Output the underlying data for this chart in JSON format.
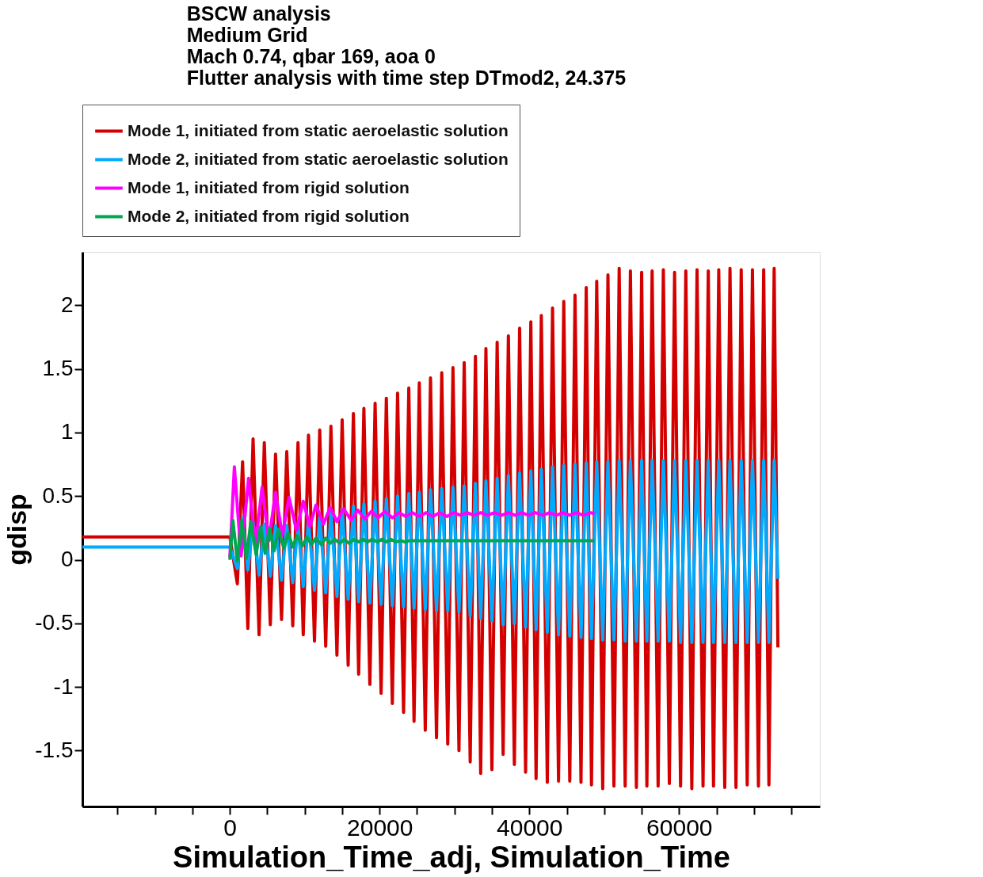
{
  "chart_data": {
    "type": "line",
    "title": [
      "BSCW analysis",
      "Medium Grid",
      "Mach 0.74, qbar 169, aoa 0",
      "Flutter analysis with time step DTmod2, 24.375"
    ],
    "xlabel": "Simulation_Time_adj, Simulation_Time",
    "ylabel": "gdisp",
    "xlim": [
      -19700,
      78800
    ],
    "ylim": [
      -1.94,
      2.42
    ],
    "xticks": [
      {
        "value": -15000,
        "label": null
      },
      {
        "value": -10000,
        "label": null
      },
      {
        "value": -5000,
        "label": null
      },
      0,
      {
        "value": 5000,
        "label": null
      },
      {
        "value": 10000,
        "label": null
      },
      {
        "value": 15000,
        "label": null
      },
      20000,
      {
        "value": 25000,
        "label": null
      },
      {
        "value": 30000,
        "label": null
      },
      {
        "value": 35000,
        "label": null
      },
      40000,
      {
        "value": 45000,
        "label": null
      },
      {
        "value": 50000,
        "label": null
      },
      {
        "value": 55000,
        "label": null
      },
      60000,
      {
        "value": 65000,
        "label": null
      },
      {
        "value": 70000,
        "label": null
      },
      {
        "value": 75000,
        "label": null
      }
    ],
    "yticks": [
      -1.5,
      -1,
      -0.5,
      0,
      0.5,
      1,
      1.5,
      2
    ],
    "legend": "top",
    "grid": false,
    "marker": "none",
    "line_style": "solid",
    "series": [
      {
        "name": "Mode 1, initiated from static aeroelastic solution",
        "color": "#d40000",
        "x": [
          -19700,
          0,
          1000,
          1700,
          2400,
          3100,
          3900,
          4600,
          5400,
          6100,
          6900,
          7600,
          8400,
          9100,
          9800,
          10500,
          11300,
          12000,
          12800,
          13500,
          14300,
          15000,
          15800,
          16500,
          17200,
          17900,
          18700,
          19400,
          20200,
          20900,
          21700,
          22400,
          23200,
          23900,
          24600,
          25300,
          26100,
          26800,
          27600,
          28300,
          29100,
          29800,
          30600,
          31300,
          32100,
          32800,
          33500,
          34200,
          35000,
          35700,
          36500,
          37200,
          38000,
          38700,
          39500,
          40200,
          40900,
          41600,
          42400,
          43100,
          43900,
          44600,
          45400,
          46100,
          46900,
          47600,
          48300,
          49000,
          49800,
          50500,
          51300,
          52000,
          52800,
          53500,
          54300,
          55000,
          55700,
          56400,
          57200,
          57900,
          58700,
          59400,
          60200,
          60900,
          61700,
          62400,
          63200,
          63900,
          64600,
          65300,
          66100,
          66800,
          67600,
          68300,
          69100,
          69800,
          70600,
          71300,
          72000,
          72700,
          73200
        ],
        "values": [
          0.18,
          0.18,
          -0.19,
          0.77,
          -0.54,
          0.95,
          -0.59,
          0.92,
          -0.51,
          0.83,
          -0.47,
          0.85,
          -0.52,
          0.92,
          -0.59,
          0.98,
          -0.64,
          1.02,
          -0.68,
          1.05,
          -0.75,
          1.1,
          -0.83,
          1.15,
          -0.9,
          1.19,
          -0.98,
          1.23,
          -1.05,
          1.27,
          -1.13,
          1.31,
          -1.2,
          1.35,
          -1.27,
          1.39,
          -1.34,
          1.43,
          -1.4,
          1.47,
          -1.45,
          1.51,
          -1.5,
          1.55,
          -1.59,
          1.6,
          -1.68,
          1.66,
          -1.65,
          1.71,
          -1.53,
          1.76,
          -1.61,
          1.82,
          -1.67,
          1.87,
          -1.72,
          1.92,
          -1.75,
          1.98,
          -1.74,
          2.03,
          -1.74,
          2.08,
          -1.75,
          2.14,
          -1.77,
          2.19,
          -1.8,
          2.24,
          -1.78,
          2.29,
          -1.78,
          2.27,
          -1.79,
          2.26,
          -1.78,
          2.27,
          -1.78,
          2.28,
          -1.76,
          2.26,
          -1.78,
          2.27,
          -1.8,
          2.28,
          -1.78,
          2.27,
          -1.78,
          2.28,
          -1.79,
          2.29,
          -1.79,
          2.28,
          -1.77,
          2.28,
          -1.78,
          2.28,
          -1.77,
          2.29,
          -0.69
        ]
      },
      {
        "name": "Mode 2, initiated from static aeroelastic solution",
        "color": "#00aaff",
        "x": [
          -19700,
          0,
          1000,
          1700,
          2400,
          3100,
          3900,
          4600,
          5400,
          6100,
          6900,
          7600,
          8400,
          9100,
          9800,
          10500,
          11300,
          12000,
          12800,
          13500,
          14300,
          15000,
          15800,
          16500,
          17200,
          17900,
          18700,
          19400,
          20200,
          20900,
          21700,
          22400,
          23200,
          23900,
          24600,
          25300,
          26100,
          26800,
          27600,
          28300,
          29100,
          29800,
          30600,
          31300,
          32100,
          32800,
          33500,
          34200,
          35000,
          35700,
          36500,
          37200,
          38000,
          38700,
          39500,
          40200,
          40900,
          41600,
          42400,
          43100,
          43900,
          44600,
          45400,
          46100,
          46900,
          47600,
          48300,
          49000,
          49800,
          50500,
          51300,
          52000,
          52800,
          53500,
          54300,
          55000,
          55700,
          56400,
          57200,
          57900,
          58700,
          59400,
          60200,
          60900,
          61700,
          62400,
          63200,
          63900,
          64600,
          65300,
          66100,
          66800,
          67600,
          68300,
          69100,
          69800,
          70600,
          71300,
          72000,
          72700,
          73200
        ],
        "values": [
          0.1,
          0.1,
          -0.07,
          0.33,
          -0.08,
          0.3,
          -0.12,
          0.28,
          -0.13,
          0.27,
          -0.16,
          0.27,
          -0.18,
          0.28,
          -0.21,
          0.31,
          -0.24,
          0.34,
          -0.26,
          0.37,
          -0.29,
          0.4,
          -0.31,
          0.42,
          -0.33,
          0.44,
          -0.34,
          0.46,
          -0.35,
          0.48,
          -0.36,
          0.5,
          -0.37,
          0.52,
          -0.38,
          0.53,
          -0.39,
          0.55,
          -0.4,
          0.56,
          -0.4,
          0.57,
          -0.41,
          0.58,
          -0.44,
          0.6,
          -0.46,
          0.62,
          -0.48,
          0.64,
          -0.51,
          0.66,
          -0.5,
          0.68,
          -0.53,
          0.7,
          -0.55,
          0.71,
          -0.57,
          0.73,
          -0.59,
          0.74,
          -0.6,
          0.75,
          -0.61,
          0.76,
          -0.62,
          0.77,
          -0.63,
          0.77,
          -0.63,
          0.78,
          -0.64,
          0.78,
          -0.64,
          0.78,
          -0.64,
          0.78,
          -0.64,
          0.78,
          -0.64,
          0.78,
          -0.65,
          0.78,
          -0.65,
          0.78,
          -0.65,
          0.78,
          -0.65,
          0.78,
          -0.65,
          0.78,
          -0.65,
          0.78,
          -0.65,
          0.78,
          -0.65,
          0.78,
          -0.65,
          0.78,
          -0.15
        ]
      },
      {
        "name": "Mode 1, initiated from rigid solution",
        "color": "#ff00ff",
        "x": [
          0,
          600,
          1500,
          2500,
          3400,
          4300,
          5200,
          6100,
          7000,
          7900,
          8900,
          9800,
          10700,
          11500,
          12500,
          13400,
          14300,
          15200,
          16200,
          17100,
          18000,
          18900,
          19800,
          20700,
          21700,
          22600,
          23500,
          24400,
          25300,
          26200,
          27100,
          28000,
          29000,
          29900,
          30800,
          31700,
          32600,
          33500,
          34400,
          35300,
          36300,
          37200,
          38100,
          39000,
          39900,
          40800,
          41800,
          42700,
          43600,
          44500,
          45400,
          46300,
          47200,
          48200,
          48700
        ],
        "values": [
          0.02,
          0.73,
          0.03,
          0.64,
          0.1,
          0.57,
          0.15,
          0.53,
          0.19,
          0.49,
          0.23,
          0.46,
          0.26,
          0.43,
          0.28,
          0.41,
          0.3,
          0.4,
          0.31,
          0.39,
          0.32,
          0.38,
          0.33,
          0.38,
          0.33,
          0.37,
          0.34,
          0.37,
          0.34,
          0.37,
          0.34,
          0.37,
          0.34,
          0.37,
          0.35,
          0.37,
          0.35,
          0.37,
          0.35,
          0.37,
          0.35,
          0.37,
          0.35,
          0.37,
          0.35,
          0.37,
          0.35,
          0.37,
          0.35,
          0.37,
          0.35,
          0.37,
          0.35,
          0.37,
          0.36
        ]
      },
      {
        "name": "Mode 2, initiated from rigid solution",
        "color": "#00a650",
        "x": [
          0,
          400,
          1000,
          1600,
          2200,
          2800,
          3500,
          4100,
          4700,
          5300,
          5900,
          6500,
          7200,
          7800,
          8400,
          9000,
          9700,
          10300,
          10900,
          11500,
          12200,
          12800,
          13400,
          14000,
          14700,
          15300,
          15900,
          16500,
          17200,
          17800,
          18400,
          19000,
          19700,
          20300,
          20900,
          21500,
          22200,
          22800,
          23400,
          24000,
          30000,
          40000,
          48700
        ],
        "values": [
          0.0,
          0.31,
          -0.01,
          0.31,
          0.01,
          0.3,
          0.04,
          0.26,
          0.05,
          0.25,
          0.07,
          0.24,
          0.09,
          0.21,
          0.1,
          0.19,
          0.11,
          0.18,
          0.12,
          0.17,
          0.12,
          0.17,
          0.13,
          0.16,
          0.13,
          0.16,
          0.13,
          0.16,
          0.14,
          0.16,
          0.14,
          0.16,
          0.14,
          0.16,
          0.14,
          0.16,
          0.14,
          0.15,
          0.14,
          0.15,
          0.15,
          0.15,
          0.15
        ]
      }
    ]
  }
}
